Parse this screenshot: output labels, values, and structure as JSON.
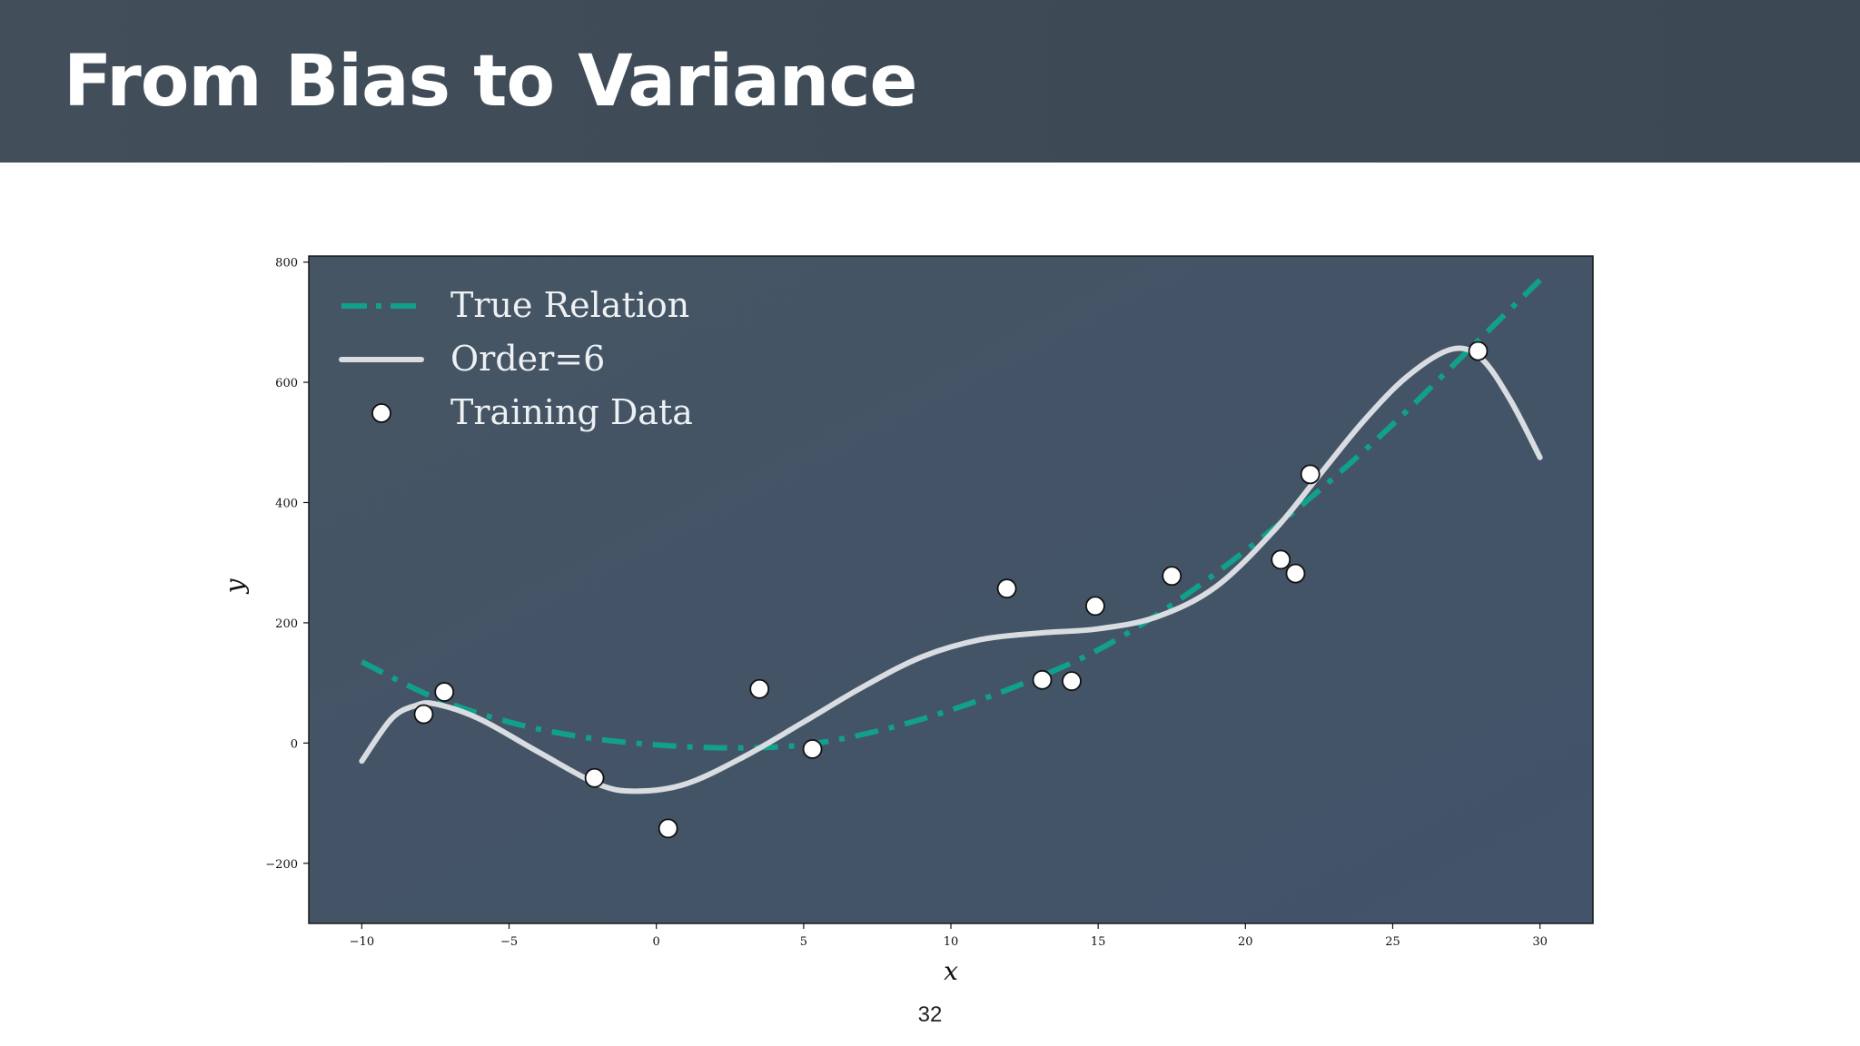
{
  "slide": {
    "title": "From Bias to Variance",
    "page_number": "32"
  },
  "colors": {
    "header_bg": "#3f4c58",
    "plot_bg": "#42536a",
    "true_relation": "#11a08c",
    "fit_curve": "#d9dde2",
    "points": "#ffffff"
  },
  "chart_data": {
    "type": "line",
    "xlabel": "x",
    "ylabel": "y",
    "xlim": [
      -11.8,
      31.8
    ],
    "ylim": [
      -300,
      810
    ],
    "xticks": [
      -10,
      -5,
      0,
      5,
      10,
      15,
      20,
      25,
      30
    ],
    "xtick_labels": [
      "−10",
      "−5",
      "0",
      "5",
      "10",
      "15",
      "20",
      "25",
      "30"
    ],
    "yticks": [
      -200,
      0,
      200,
      400,
      600,
      800
    ],
    "ytick_labels": [
      "−200",
      "0",
      "200",
      "400",
      "600",
      "800"
    ],
    "grid": false,
    "legend_position": "top-left",
    "series": [
      {
        "name": "True Relation",
        "style": "dash-dot",
        "x": [
          -10,
          -7.5,
          -5,
          -2.5,
          0,
          2.5,
          5,
          7.5,
          10,
          12.5,
          15,
          17.5,
          20,
          22.5,
          25,
          27.5,
          30
        ],
        "y": [
          135,
          75,
          35,
          10,
          -3,
          -8,
          -3,
          20,
          55,
          100,
          155,
          230,
          320,
          420,
          530,
          650,
          770
        ]
      },
      {
        "name": "Order=6",
        "style": "solid",
        "x": [
          -10,
          -9,
          -8.2,
          -7.5,
          -6,
          -4,
          -2,
          -0.7,
          1,
          3,
          5,
          7,
          9,
          11,
          13,
          15,
          17,
          19,
          21,
          22.5,
          24,
          25.5,
          27,
          28,
          29,
          30
        ],
        "y": [
          -30,
          40,
          62,
          65,
          40,
          -15,
          -68,
          -80,
          -68,
          -22,
          35,
          93,
          143,
          172,
          183,
          190,
          210,
          260,
          355,
          445,
          535,
          610,
          655,
          640,
          570,
          475
        ]
      },
      {
        "name": "Training Data",
        "style": "points",
        "x": [
          -7.9,
          -7.2,
          -2.1,
          0.4,
          3.5,
          5.3,
          11.9,
          13.1,
          14.1,
          14.9,
          17.5,
          21.2,
          21.7,
          22.2,
          27.9
        ],
        "y": [
          48,
          85,
          -58,
          -142,
          90,
          -10,
          257,
          105,
          103,
          228,
          278,
          305,
          282,
          447,
          652
        ]
      }
    ]
  }
}
